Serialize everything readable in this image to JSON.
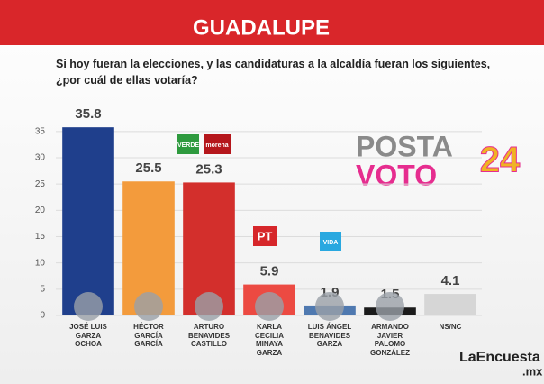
{
  "chart_data": {
    "type": "bar",
    "title": "GUADALUPE",
    "subtitle": "Si hoy fueran la elecciones, y las candidaturas a la alcaldía fueran los siguientes, ¿por cuál de ellas votaría?",
    "categories": [
      "JOSÉ LUIS\nGARZA\nOCHOA",
      "HÉCTOR\nGARCÍA\nGARCÍA",
      "ARTURO\nBENAVIDES\nCASTILLO",
      "KARLA\nCECILIA\nMINAYA\nGARZA",
      "LUIS ÁNGEL\nBENAVIDES\nGARZA",
      "ARMANDO\nJAVIER\nPALOMO\nGONZÁLEZ",
      "NS/NC"
    ],
    "values": [
      35.8,
      25.5,
      25.3,
      5.9,
      1.9,
      1.5,
      4.1
    ],
    "colors": [
      "#1f3f8c",
      "#f39b3c",
      "#d32f2c",
      "#ec4a42",
      "#4f79b0",
      "#1b1b1b",
      "#d6d6d6"
    ],
    "ylim": [
      0,
      36
    ],
    "yticks": [
      0,
      5,
      10,
      15,
      20,
      25,
      30,
      35
    ],
    "grid": true,
    "logo_texts": [
      "VERDE",
      "morena",
      "PT",
      "VIDA"
    ],
    "branding": {
      "posta": "POSTA",
      "voto": "VOTO",
      "year": "24",
      "site": "LaEncuesta",
      "domain": ".mx"
    }
  }
}
